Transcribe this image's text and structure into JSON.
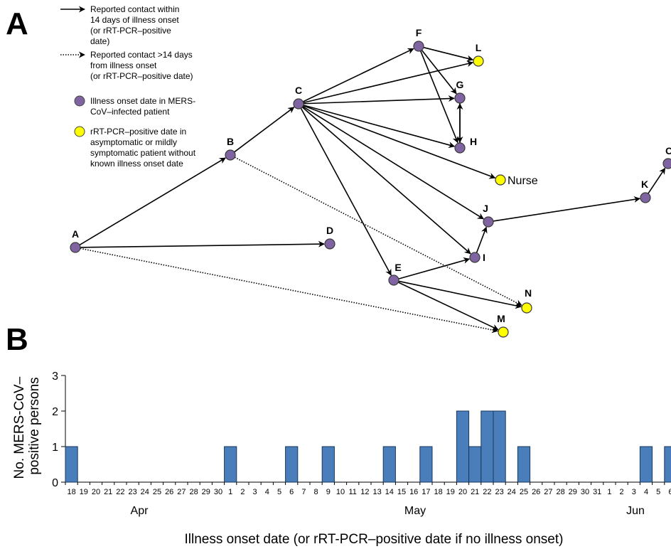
{
  "panel_labels": {
    "a": "A",
    "b": "B"
  },
  "legend": {
    "solid_lines": [
      "Reported contact within",
      "14 days of illness onset",
      "(or rRT-PCR–positive",
      "date)"
    ],
    "dotted_lines": [
      "Reported contact  >14 days",
      "from illness onset",
      "(or rRT-PCR–positive date)"
    ],
    "purple_lines": [
      "Illness onset date in MERS-",
      "CoV–infected patient"
    ],
    "yellow_lines": [
      "rRT-PCR–positive date in",
      "asymptomatic or mildly",
      "symptomatic patient without",
      "known illness onset date"
    ]
  },
  "colors": {
    "purple": "#8064a2",
    "yellow": "#ffff00",
    "bar": "#4a7ebb",
    "bar_edge": "#17375e"
  },
  "network": {
    "nodes": [
      {
        "id": "A",
        "label": "A",
        "type": "illness_onset"
      },
      {
        "id": "B",
        "label": "B",
        "type": "illness_onset"
      },
      {
        "id": "C",
        "label": "C",
        "type": "illness_onset"
      },
      {
        "id": "D",
        "label": "D",
        "type": "illness_onset"
      },
      {
        "id": "E",
        "label": "E",
        "type": "illness_onset"
      },
      {
        "id": "F",
        "label": "F",
        "type": "illness_onset"
      },
      {
        "id": "G",
        "label": "G",
        "type": "illness_onset"
      },
      {
        "id": "H",
        "label": "H",
        "type": "illness_onset"
      },
      {
        "id": "I",
        "label": "I",
        "type": "illness_onset"
      },
      {
        "id": "J",
        "label": "J",
        "type": "illness_onset"
      },
      {
        "id": "K",
        "label": "K",
        "type": "illness_onset"
      },
      {
        "id": "O",
        "label": "O",
        "type": "illness_onset"
      },
      {
        "id": "L",
        "label": "L",
        "type": "rrt_pcr_positive"
      },
      {
        "id": "Nurse",
        "label": "Nurse",
        "type": "rrt_pcr_positive"
      },
      {
        "id": "N",
        "label": "N",
        "type": "rrt_pcr_positive"
      },
      {
        "id": "M",
        "label": "M",
        "type": "rrt_pcr_positive"
      }
    ],
    "edges": [
      {
        "from": "A",
        "to": "B",
        "style": "solid"
      },
      {
        "from": "A",
        "to": "D",
        "style": "solid"
      },
      {
        "from": "A",
        "to": "M",
        "style": "dotted"
      },
      {
        "from": "B",
        "to": "C",
        "style": "solid"
      },
      {
        "from": "B",
        "to": "N",
        "style": "dotted"
      },
      {
        "from": "C",
        "to": "F",
        "style": "solid"
      },
      {
        "from": "C",
        "to": "L",
        "style": "solid"
      },
      {
        "from": "C",
        "to": "G",
        "style": "solid"
      },
      {
        "from": "C",
        "to": "H",
        "style": "solid"
      },
      {
        "from": "C",
        "to": "Nurse",
        "style": "solid"
      },
      {
        "from": "C",
        "to": "J",
        "style": "solid"
      },
      {
        "from": "C",
        "to": "I",
        "style": "solid"
      },
      {
        "from": "C",
        "to": "E",
        "style": "solid"
      },
      {
        "from": "F",
        "to": "L",
        "style": "solid"
      },
      {
        "from": "F",
        "to": "G",
        "style": "solid"
      },
      {
        "from": "F",
        "to": "H",
        "style": "solid"
      },
      {
        "from": "G",
        "to": "H",
        "style": "solid"
      },
      {
        "from": "H",
        "to": "G",
        "style": "solid"
      },
      {
        "from": "E",
        "to": "I",
        "style": "solid"
      },
      {
        "from": "E",
        "to": "N",
        "style": "solid"
      },
      {
        "from": "E",
        "to": "M",
        "style": "solid"
      },
      {
        "from": "I",
        "to": "J",
        "style": "solid"
      },
      {
        "from": "J",
        "to": "K",
        "style": "solid"
      },
      {
        "from": "K",
        "to": "O",
        "style": "solid"
      }
    ]
  },
  "chart_data": {
    "type": "bar",
    "ylabel": "No. MERS-CoV–positive persons",
    "xlabel": "Illness onset date (or rRT-PCR–positive date if no illness onset)",
    "ylim": [
      0,
      3
    ],
    "yticks": [
      "0",
      "1",
      "2",
      "3"
    ],
    "categories": [
      "18",
      "19",
      "20",
      "21",
      "22",
      "23",
      "24",
      "25",
      "26",
      "27",
      "28",
      "29",
      "30",
      "1",
      "2",
      "3",
      "4",
      "5",
      "6",
      "7",
      "8",
      "9",
      "10",
      "11",
      "12",
      "13",
      "14",
      "15",
      "16",
      "17",
      "18",
      "19",
      "20",
      "21",
      "22",
      "23",
      "24",
      "25",
      "26",
      "27",
      "28",
      "29",
      "30",
      "31",
      "1",
      "2",
      "3",
      "4",
      "5",
      "6"
    ],
    "values": [
      1,
      0,
      0,
      0,
      0,
      0,
      0,
      0,
      0,
      0,
      0,
      0,
      0,
      1,
      0,
      0,
      0,
      0,
      1,
      0,
      0,
      1,
      0,
      0,
      0,
      0,
      1,
      0,
      0,
      1,
      0,
      0,
      2,
      1,
      2,
      2,
      0,
      1,
      0,
      0,
      0,
      0,
      0,
      0,
      0,
      0,
      0,
      1,
      0,
      1
    ],
    "months": [
      "Apr",
      "May",
      "Jun"
    ],
    "grid": false
  }
}
